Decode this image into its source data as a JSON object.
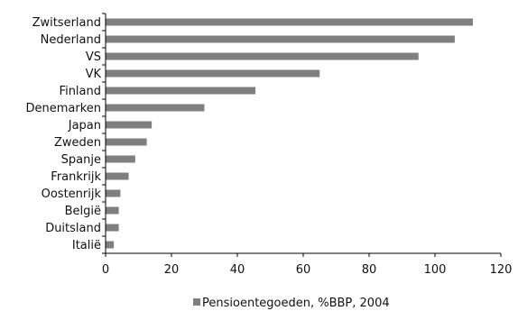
{
  "chart_data": {
    "type": "bar",
    "orientation": "horizontal",
    "categories": [
      "Zwitserland",
      "Nederland",
      "VS",
      "VK",
      "Finland",
      "Denemarken",
      "Japan",
      "Zweden",
      "Spanje",
      "Frankrijk",
      "Oostenrijk",
      "België",
      "Duitsland",
      "Italië"
    ],
    "series": [
      {
        "name": "Pensioentegoeden, %BBP, 2004",
        "values": [
          111.5,
          106,
          95,
          65,
          45.5,
          30,
          14,
          12.5,
          9,
          7,
          4.5,
          4,
          4,
          2.5
        ]
      }
    ],
    "xlim": [
      0,
      120
    ],
    "xticks": [
      "0",
      "20",
      "40",
      "60",
      "80",
      "100",
      "120"
    ],
    "grid": false,
    "legend": "bottom-center",
    "bar_color": "#7f7f7f"
  }
}
